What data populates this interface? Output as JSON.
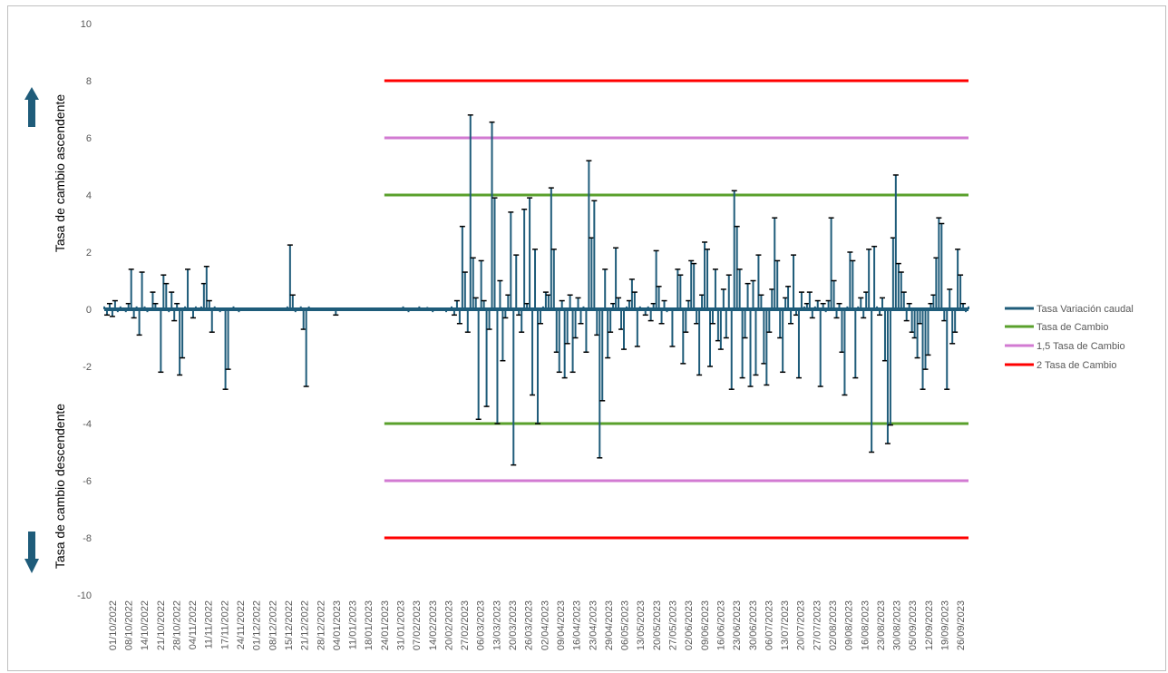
{
  "chart_data": {
    "type": "line",
    "title": "",
    "ylabel_up": "Tasa de cambio ascendente",
    "ylabel_down": "Tasa de cambio descendente",
    "ylim": [
      -10,
      10
    ],
    "yticks": [
      "10",
      "8",
      "6",
      "4",
      "2",
      "0",
      "-2",
      "-4",
      "-6",
      "-8",
      "-10"
    ],
    "x_tick_labels": [
      "01/10/2022",
      "08/10/2022",
      "14/10/2022",
      "21/10/2022",
      "28/10/2022",
      "04/11/2022",
      "11/11/2022",
      "17/11/2022",
      "24/11/2022",
      "01/12/2022",
      "08/12/2022",
      "15/12/2022",
      "21/12/2022",
      "28/12/2022",
      "04/01/2023",
      "11/01/2023",
      "18/01/2023",
      "24/01/2023",
      "31/01/2023",
      "07/02/2023",
      "14/02/2023",
      "20/02/2023",
      "27/02/2023",
      "06/03/2023",
      "13/03/2023",
      "20/03/2023",
      "26/03/2023",
      "02/04/2023",
      "09/04/2023",
      "16/04/2023",
      "23/04/2023",
      "29/04/2023",
      "06/05/2023",
      "13/05/2023",
      "20/05/2023",
      "27/05/2023",
      "02/06/2023",
      "09/06/2023",
      "16/06/2023",
      "23/06/2023",
      "30/06/2023",
      "06/07/2023",
      "13/07/2023",
      "20/07/2023",
      "27/07/2023",
      "02/08/2023",
      "09/08/2023",
      "16/08/2023",
      "23/08/2023",
      "30/08/2023",
      "05/09/2023",
      "12/09/2023",
      "19/09/2023",
      "26/09/2023"
    ],
    "series": [
      {
        "name": "Tasa Variación caudal",
        "color": "#1f5c7a",
        "values": [
          0.1,
          -0.2,
          0.2,
          -0.25,
          0.3,
          -0.1,
          0.1,
          0.05,
          -0.1,
          0.2,
          1.4,
          -0.3,
          0.1,
          -0.9,
          1.3,
          0.1,
          -0.1,
          0.05,
          0.6,
          0.2,
          0.05,
          -2.2,
          1.2,
          0.9,
          -0.1,
          0.6,
          -0.4,
          0.2,
          -2.3,
          -1.7,
          0.1,
          1.4,
          0.05,
          -0.3,
          0.1,
          0.05,
          0.1,
          0.9,
          1.5,
          0.3,
          -0.8,
          0.1,
          0.05,
          -0.1,
          0.05,
          -2.8,
          -2.1,
          0.05,
          0.1,
          0.05,
          -0.1,
          0.05,
          0.03,
          0.05,
          0.03,
          -0.05,
          0.04,
          0.03,
          -0.04,
          0.02,
          0.03,
          0.05,
          -0.03,
          0.02,
          0.04,
          -0.02,
          0.03,
          0.05,
          0.1,
          2.25,
          0.5,
          -0.1,
          0.05,
          0.1,
          -0.7,
          -2.7,
          0.1,
          0.05,
          -0.05,
          0.03,
          0.02,
          0.04,
          -0.03,
          0.02,
          -0.05,
          0.03,
          -0.2,
          0.05,
          0.03,
          -0.04,
          0.05,
          0.02,
          0.05,
          0.04,
          -0.03,
          0.02,
          0.04,
          -0.05,
          0.03,
          0.02,
          0.04,
          -0.03,
          0.05,
          0.02,
          -0.04,
          0.03,
          0.02,
          0.04,
          -0.03,
          0.02,
          -0.05,
          0.1,
          0.05,
          -0.1,
          0.02,
          0.05,
          -0.04,
          0.1,
          0.03,
          -0.05,
          0.08,
          0.05,
          -0.1,
          0.04,
          -0.06,
          0.05,
          0.03,
          -0.1,
          0.05,
          0.1,
          -0.2,
          0.3,
          -0.5,
          2.9,
          1.3,
          -0.8,
          6.8,
          1.8,
          0.4,
          -3.85,
          1.7,
          0.3,
          -3.4,
          -0.7,
          6.55,
          3.9,
          -4.0,
          1.0,
          -1.8,
          -0.3,
          0.5,
          3.4,
          -5.45,
          1.9,
          -0.2,
          -0.8,
          3.5,
          0.2,
          3.9,
          -3.0,
          2.1,
          -4.0,
          -0.5,
          0.1,
          0.6,
          0.5,
          4.25,
          2.1,
          -1.5,
          -2.2,
          0.3,
          -2.4,
          -1.2,
          0.5,
          -2.2,
          -1.0,
          0.4,
          -0.5,
          0.1,
          -1.5,
          5.2,
          2.5,
          3.8,
          -0.9,
          -5.2,
          -3.2,
          1.4,
          -1.7,
          -0.8,
          0.2,
          2.15,
          0.4,
          -0.7,
          -1.4,
          0.1,
          0.3,
          1.05,
          0.6,
          -1.3,
          0.1,
          0.05,
          -0.2,
          0.1,
          -0.4,
          0.2,
          2.05,
          0.8,
          -0.5,
          0.3,
          -0.1,
          0.05,
          -1.3,
          0.05,
          1.4,
          1.2,
          -1.9,
          -0.8,
          0.3,
          1.7,
          1.6,
          -0.5,
          -2.3,
          0.5,
          2.35,
          2.1,
          -2.0,
          -0.5,
          1.4,
          -1.1,
          -1.4,
          0.7,
          -1.0,
          1.2,
          -2.8,
          4.15,
          2.9,
          1.4,
          -2.4,
          -1.0,
          0.9,
          -2.7,
          1.0,
          -2.3,
          1.9,
          0.5,
          -1.9,
          -2.65,
          -0.8,
          0.7,
          3.2,
          1.7,
          -1.0,
          -2.2,
          0.4,
          0.8,
          -0.5,
          1.9,
          -0.2,
          -2.4,
          0.6,
          0.1,
          0.2,
          0.6,
          -0.3,
          0.1,
          0.3,
          -2.7,
          0.2,
          -0.1,
          0.3,
          3.2,
          1.0,
          -0.3,
          0.2,
          -1.5,
          -3.0,
          0.1,
          2.0,
          1.7,
          -2.4,
          0.1,
          0.4,
          -0.3,
          0.6,
          2.1,
          -5.0,
          2.2,
          0.1,
          -0.2,
          0.4,
          -1.8,
          -4.7,
          -4.05,
          2.5,
          4.7,
          1.6,
          1.3,
          0.6,
          -0.4,
          0.2,
          -0.8,
          -1.0,
          -1.7,
          -0.5,
          -2.8,
          -2.1,
          -1.6,
          0.2,
          0.5,
          1.8,
          3.2,
          3.0,
          -0.4,
          -2.8,
          0.7,
          -1.2,
          -0.8,
          2.1,
          1.2,
          0.2,
          -0.1,
          0.1
        ]
      },
      {
        "name": "Tasa de Cambio",
        "color": "#5aa02c",
        "level": 4,
        "from": "24/01/2023"
      },
      {
        "name": "1,5 Tasa de Cambio",
        "color": "#d27ad2",
        "level": 6,
        "from": "24/01/2023"
      },
      {
        "name": "2 Tasa de Cambio",
        "color": "#ff0000",
        "level": 8,
        "from": "24/01/2023"
      }
    ],
    "legend_position": "right",
    "grid": false
  },
  "arrows": {
    "up": "arrow-up-icon",
    "down": "arrow-down-icon",
    "color": "#1f5c7a"
  }
}
